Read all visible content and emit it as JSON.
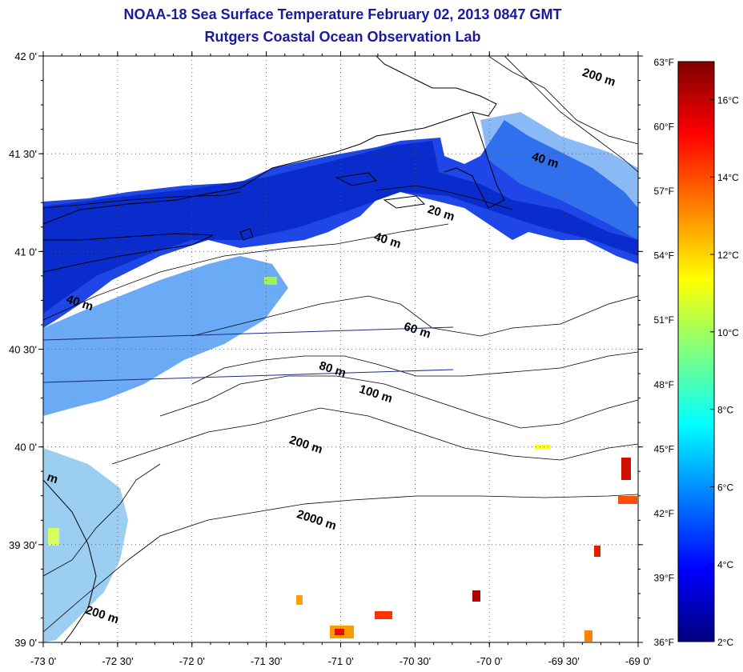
{
  "header": {
    "title": "NOAA-18 Sea Surface Temperature February 02, 2013 0847 GMT",
    "subtitle": "Rutgers Coastal Ocean Observation Lab"
  },
  "map": {
    "lon_range": [
      -73.0,
      -69.0
    ],
    "lat_range": [
      39.0,
      42.0
    ],
    "lat_labels": [
      "42 0'",
      "41 30'",
      "41 0'",
      "40 30'",
      "40 0'",
      "39 30'",
      "39 0'"
    ],
    "lon_labels": [
      "-73 0'",
      "-72 30'",
      "-72 0'",
      "-71 30'",
      "-71 0'",
      "-70 30'",
      "-70 0'",
      "-69 30'",
      "-69 0'"
    ],
    "grid": "dotted",
    "depth_labels": [
      {
        "text": "200 m",
        "lon": -69.38,
        "lat": 41.9
      },
      {
        "text": "40 m",
        "lon": -69.72,
        "lat": 41.47
      },
      {
        "text": "20 m",
        "lon": -70.42,
        "lat": 41.2
      },
      {
        "text": "40 m",
        "lon": -70.78,
        "lat": 41.06
      },
      {
        "text": "40 m",
        "lon": -72.85,
        "lat": 40.74
      },
      {
        "text": "60 m",
        "lon": -70.58,
        "lat": 40.6
      },
      {
        "text": "80 m",
        "lon": -71.15,
        "lat": 40.4
      },
      {
        "text": "100 m",
        "lon": -70.88,
        "lat": 40.28
      },
      {
        "text": "200 m",
        "lon": -71.35,
        "lat": 40.02
      },
      {
        "text": "2000 m",
        "lon": -71.3,
        "lat": 39.64
      },
      {
        "text": "200 m",
        "lon": -72.72,
        "lat": 39.15
      },
      {
        "text": "m",
        "lon": -72.98,
        "lat": 39.83
      }
    ]
  },
  "colorbar": {
    "colors": [
      "#00007f",
      "#0000ff",
      "#007fff",
      "#00ffff",
      "#7fff7f",
      "#ffff00",
      "#ff7f00",
      "#ff0000",
      "#7f0000"
    ],
    "celsius_labels": [
      "2°C",
      "4°C",
      "6°C",
      "8°C",
      "10°C",
      "12°C",
      "14°C",
      "16°C"
    ],
    "fahrenheit_labels": [
      "36°F",
      "39°F",
      "42°F",
      "45°F",
      "48°F",
      "51°F",
      "54°F",
      "57°F",
      "60°F",
      "63°F"
    ]
  }
}
